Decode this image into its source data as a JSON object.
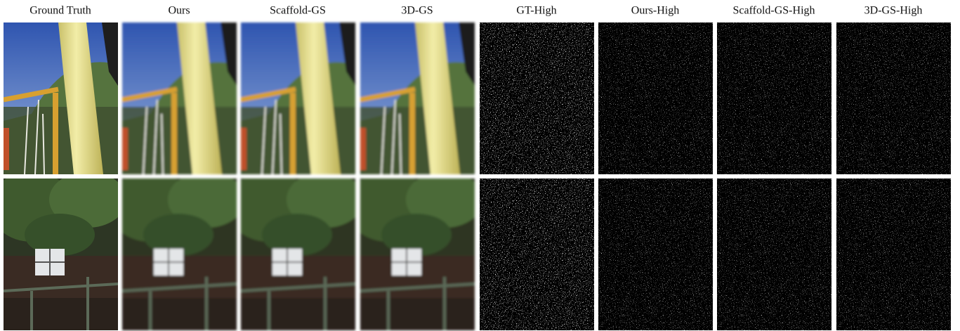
{
  "figure": {
    "columns": [
      "Ground Truth",
      "Ours",
      "Scaffold-GS",
      "3D-GS",
      "GT-High",
      "Ours-High",
      "Scaffold-GS-High",
      "3D-GS-High"
    ]
  }
}
